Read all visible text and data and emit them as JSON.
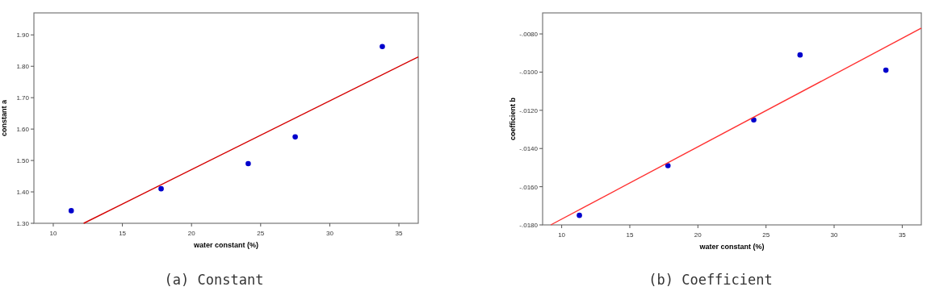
{
  "chart_data": [
    {
      "type": "scatter",
      "title": "(a) Constant",
      "xlabel": "water constant  (%)",
      "ylabel": "constant a",
      "xlim": [
        8.6,
        36.4
      ],
      "xticks": [
        10,
        15,
        20,
        25,
        30,
        35
      ],
      "ylim": [
        1.3,
        1.97
      ],
      "yticks": [
        {
          "value": 1.3,
          "label": "1.30"
        },
        {
          "value": 1.4,
          "label": "1.40"
        },
        {
          "value": 1.5,
          "label": "1.50"
        },
        {
          "value": 1.6,
          "label": "1.60"
        },
        {
          "value": 1.7,
          "label": "1.70"
        },
        {
          "value": 1.8,
          "label": "1.80"
        },
        {
          "value": 1.9,
          "label": "1.90"
        }
      ],
      "grid": false,
      "marker": "circle",
      "series": [
        {
          "color": "#0000cc",
          "x": [
            11.3,
            17.8,
            24.1,
            27.5,
            33.8
          ],
          "values": [
            1.34,
            1.41,
            1.49,
            1.575,
            1.863
          ]
        },
        {
          "type": "line",
          "color": "#d40000",
          "marker": "none",
          "x": [
            12.2,
            36.4
          ],
          "values": [
            1.3,
            1.83
          ]
        }
      ]
    },
    {
      "type": "scatter",
      "title": "(b) Coefficient",
      "xlabel": "water constant  (%)",
      "ylabel": "coefficient b",
      "xlim": [
        8.6,
        36.4
      ],
      "xticks": [
        10,
        15,
        20,
        25,
        30,
        35
      ],
      "ylim": [
        -0.018,
        -0.0069
      ],
      "yticks": [
        {
          "value": -0.018,
          "label": "-.0180"
        },
        {
          "value": -0.016,
          "label": "-.0160"
        },
        {
          "value": -0.014,
          "label": "-.0140"
        },
        {
          "value": -0.012,
          "label": "-.0120"
        },
        {
          "value": -0.01,
          "label": "-.0100"
        },
        {
          "value": -0.008,
          "label": "-.0080"
        }
      ],
      "grid": false,
      "marker": "circle",
      "series": [
        {
          "color": "#0000cc",
          "x": [
            11.3,
            17.8,
            24.1,
            27.5,
            33.8
          ],
          "values": [
            -0.0175,
            -0.0149,
            -0.0125,
            -0.0091,
            -0.0099
          ]
        },
        {
          "type": "line",
          "color": "#ff3030",
          "marker": "none",
          "x": [
            9.2,
            36.4
          ],
          "values": [
            -0.018,
            -0.0077
          ]
        }
      ]
    }
  ]
}
